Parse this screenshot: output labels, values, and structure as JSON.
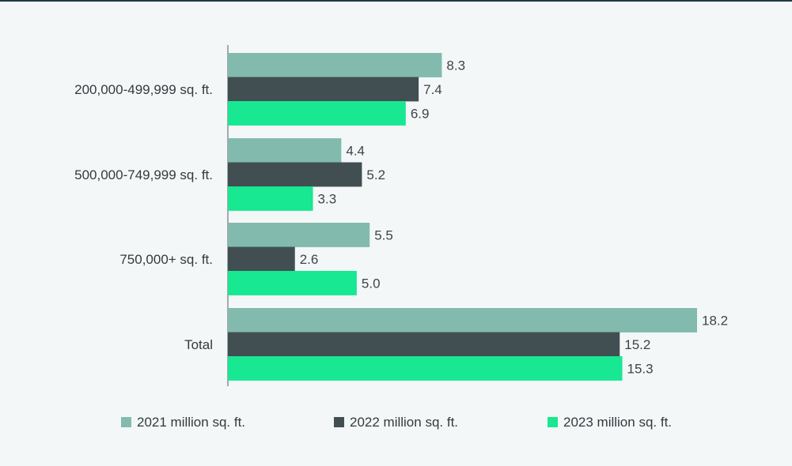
{
  "chart_data": {
    "type": "bar",
    "orientation": "horizontal",
    "categories": [
      "200,000-499,999 sq. ft.",
      "500,000-749,999 sq. ft.",
      "750,000+ sq. ft.",
      "Total"
    ],
    "series": [
      {
        "name": "2021 million sq. ft.",
        "values": [
          8.3,
          4.4,
          5.5,
          18.2
        ],
        "labels": [
          "8.3",
          "4.4",
          "5.5",
          "18.2"
        ],
        "color": "#82bbad"
      },
      {
        "name": "2022 million sq. ft.",
        "values": [
          7.4,
          5.2,
          2.6,
          15.2
        ],
        "labels": [
          "7.4",
          "5.2",
          "2.6",
          "15.2"
        ],
        "color": "#414f53"
      },
      {
        "name": "2023 million sq. ft.",
        "values": [
          6.9,
          3.3,
          5.0,
          15.3
        ],
        "labels": [
          "6.9",
          "3.3",
          "5.0",
          "15.3"
        ],
        "color": "#17e891"
      }
    ],
    "xlim": [
      0,
      18.2
    ],
    "legend_position": "bottom",
    "grid": false
  }
}
